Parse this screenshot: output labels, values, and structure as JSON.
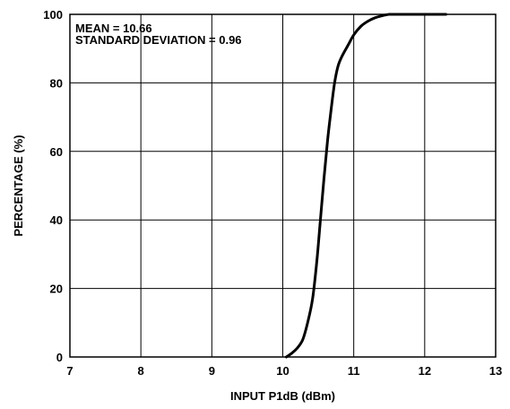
{
  "chart_data": {
    "type": "line",
    "xlabel": "INPUT P1dB (dBm)",
    "ylabel": "PERCENTAGE (%)",
    "xlim": [
      7,
      13
    ],
    "ylim": [
      0,
      100
    ],
    "x_ticks": [
      7,
      8,
      9,
      10,
      11,
      12,
      13
    ],
    "y_ticks": [
      0,
      20,
      40,
      60,
      80,
      100
    ],
    "grid": true,
    "annotations": [
      "MEAN = 10.66",
      "STANDARD DEVIATION = 0.96"
    ],
    "series": [
      {
        "x": [
          10.05,
          10.12,
          10.2,
          10.28,
          10.35,
          10.42,
          10.48,
          10.53,
          10.58,
          10.63,
          10.68,
          10.73,
          10.78,
          10.84,
          10.92,
          11.0,
          11.1,
          11.2,
          11.3,
          11.4,
          11.5,
          11.6,
          12.3
        ],
        "y": [
          0,
          1,
          2.5,
          5,
          10,
          17,
          28,
          40,
          52,
          63,
          72,
          80,
          85,
          88,
          91,
          94,
          96.5,
          98,
          99,
          99.6,
          100,
          100,
          100
        ]
      }
    ]
  }
}
